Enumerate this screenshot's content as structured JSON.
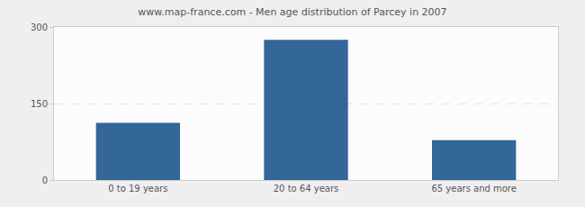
{
  "chart_data": {
    "type": "bar",
    "title": "www.map-france.com - Men age distribution of Parcey in 2007",
    "categories": [
      "0 to 19 years",
      "20 to 64 years",
      "65 years and more"
    ],
    "values": [
      112,
      275,
      78
    ],
    "color": "#336699",
    "ylim": [
      0,
      300
    ],
    "yticks": [
      0,
      150,
      300
    ],
    "grid": true
  }
}
